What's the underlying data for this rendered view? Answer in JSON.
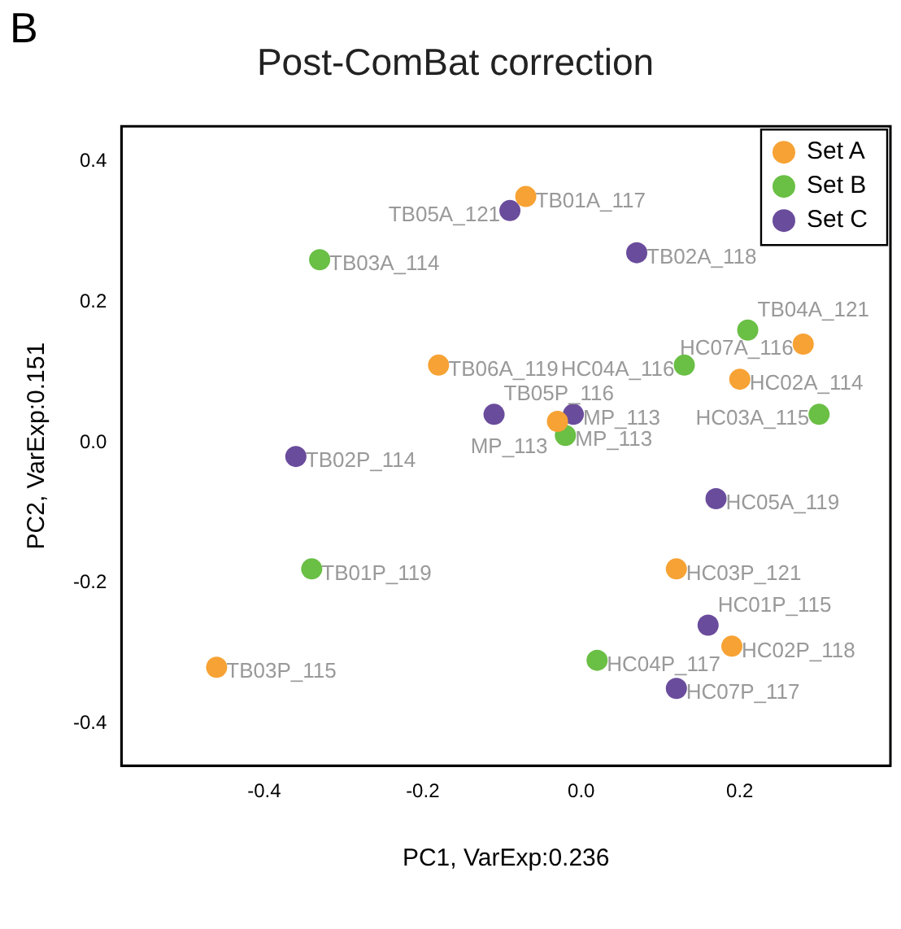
{
  "chart_data": {
    "type": "scatter",
    "title": "Post-ComBat correction",
    "xlabel": "PC1, VarExp:0.236",
    "ylabel": "PC2, VarExp:0.151",
    "annotations": [
      "B",
      {
        "text": "TB01A_117",
        "x": -0.07,
        "y": 0.35
      },
      {
        "text": "TB06A_119",
        "x": -0.18,
        "y": 0.11
      },
      {
        "text": "MP_113",
        "x": -0.03,
        "y": 0.03
      },
      {
        "text": "HC07A_116",
        "x": 0.28,
        "y": 0.14
      },
      {
        "text": "HC02A_114",
        "x": 0.2,
        "y": 0.09
      },
      {
        "text": "HC03P_121",
        "x": 0.12,
        "y": -0.18
      },
      {
        "text": "HC02P_118",
        "x": 0.19,
        "y": -0.29
      },
      {
        "text": "TB03P_115",
        "x": -0.46,
        "y": -0.32
      },
      {
        "text": "TB03A_114",
        "x": -0.33,
        "y": 0.26
      },
      {
        "text": "TB04A_121",
        "x": 0.21,
        "y": 0.16
      },
      {
        "text": "HC04A_116",
        "x": 0.13,
        "y": 0.11
      },
      {
        "text": "MP_113",
        "x": -0.02,
        "y": 0.01
      },
      {
        "text": "HC03A_115",
        "x": 0.3,
        "y": 0.04
      },
      {
        "text": "TB01P_119",
        "x": -0.34,
        "y": -0.18
      },
      {
        "text": "HC04P_117",
        "x": 0.02,
        "y": -0.31
      },
      {
        "text": "TB05A_121",
        "x": -0.09,
        "y": 0.33
      },
      {
        "text": "TB02A_118",
        "x": 0.07,
        "y": 0.27
      },
      {
        "text": "TB05P_116",
        "x": -0.11,
        "y": 0.04
      },
      {
        "text": "MP_113",
        "x": -0.01,
        "y": 0.04
      },
      {
        "text": "TB02P_114",
        "x": -0.36,
        "y": -0.02
      },
      {
        "text": "HC05A_119",
        "x": 0.17,
        "y": -0.08
      },
      {
        "text": "HC01P_115",
        "x": 0.16,
        "y": -0.26
      },
      {
        "text": "HC07P_117",
        "x": 0.12,
        "y": -0.35
      }
    ],
    "xlim": [
      -0.58,
      0.39
    ],
    "xticks": [
      -0.4,
      -0.2,
      {
        "value": 0,
        "label": "0.0"
      },
      0.2
    ],
    "ylim": [
      -0.46,
      0.45
    ],
    "yticks": [
      -0.4,
      -0.2,
      {
        "value": 0,
        "label": "0.0"
      },
      0.2,
      0.4
    ],
    "grid": false,
    "legend": "top right",
    "marker": "circle",
    "series": [
      {
        "name": "Set A",
        "color": "#f7a234",
        "x": [
          -0.07,
          -0.18,
          -0.03,
          0.28,
          0.2,
          0.12,
          0.19,
          -0.46
        ],
        "values": [
          0.35,
          0.11,
          0.03,
          0.14,
          0.09,
          -0.18,
          -0.29,
          -0.32
        ]
      },
      {
        "name": "Set B",
        "color": "#6abf45",
        "x": [
          -0.33,
          0.21,
          0.13,
          -0.02,
          0.3,
          -0.34,
          0.02
        ],
        "values": [
          0.26,
          0.16,
          0.11,
          0.01,
          0.04,
          -0.18,
          -0.31
        ]
      },
      {
        "name": "Set C",
        "color": "#6a4c9c",
        "x": [
          -0.09,
          0.07,
          -0.11,
          -0.01,
          -0.36,
          0.17,
          0.16,
          0.12
        ],
        "values": [
          0.33,
          0.27,
          0.04,
          0.04,
          -0.02,
          -0.08,
          -0.26,
          -0.35
        ]
      }
    ]
  }
}
